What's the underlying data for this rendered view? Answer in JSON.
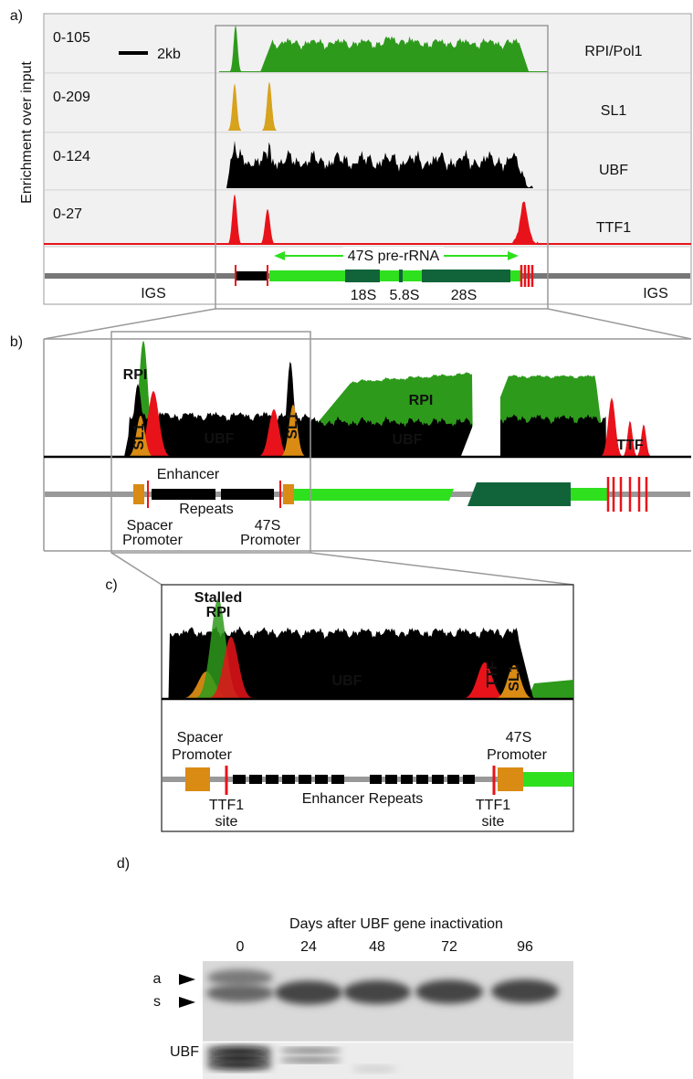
{
  "panel_a": {
    "label": "a)",
    "y_axis_title": "Enrichment over input",
    "scale_bar": "2kb",
    "tracks": [
      {
        "range": "0-105",
        "name": "RPI/Pol1"
      },
      {
        "range": "0-209",
        "name": "SL1"
      },
      {
        "range": "0-124",
        "name": "UBF"
      },
      {
        "range": "0-27",
        "name": "TTF1"
      }
    ],
    "transcript": "47S pre-rRNA",
    "rrna": [
      "18S",
      "5.8S",
      "28S"
    ],
    "igs": [
      "IGS",
      "IGS"
    ]
  },
  "panel_b": {
    "label": "b)",
    "peaks": [
      "RPI",
      "SL1",
      "UBF",
      "SL1",
      "RPI",
      "UBF",
      "TTF"
    ],
    "enhancer": [
      "Enhancer",
      "Repeats"
    ],
    "spacer_promoter": [
      "Spacer",
      "Promoter"
    ],
    "promoter_47s": [
      "47S",
      "Promoter"
    ]
  },
  "panel_c": {
    "label": "c)",
    "stalled_rpi": [
      "Stalled",
      "RPI"
    ],
    "peaks": [
      "UBF",
      "TTF",
      "SL1"
    ],
    "spacer_promoter": [
      "Spacer",
      "Promoter"
    ],
    "promoter_47s": [
      "47S",
      "Promoter"
    ],
    "ttf1_sites": [
      [
        "TTF1",
        "site"
      ],
      [
        "TTF1",
        "site"
      ]
    ],
    "enhancer": "Enhancer Repeats"
  },
  "panel_d": {
    "label": "d)",
    "title": "Days after UBF gene inactivation",
    "lanes": [
      "0",
      "24",
      "48",
      "72",
      "96"
    ],
    "bands": [
      "a",
      "s"
    ],
    "blot": "UBF"
  }
}
